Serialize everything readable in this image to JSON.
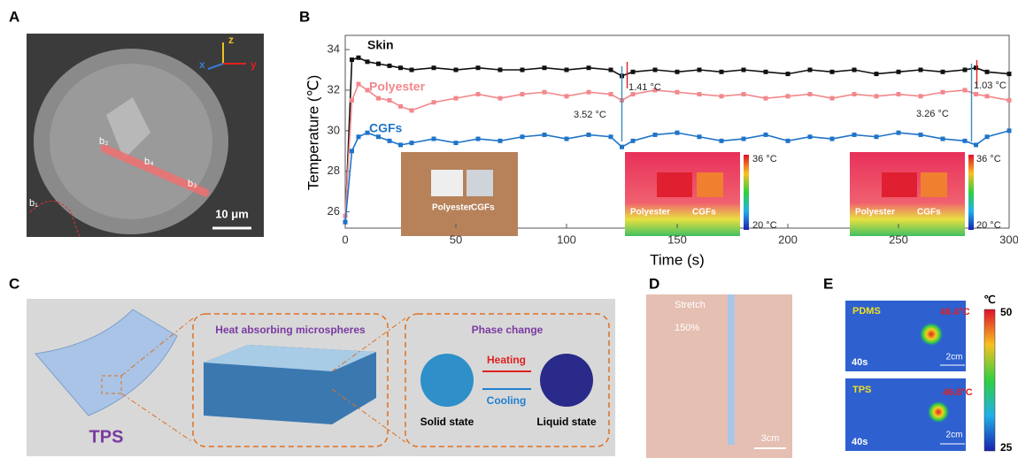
{
  "panel_labels": [
    "A",
    "B",
    "C",
    "D",
    "E"
  ],
  "panel_a": {
    "axes": [
      "z",
      "x",
      "y"
    ],
    "points": [
      "b₂",
      "b₄",
      "b₃",
      "b₁"
    ],
    "scale_bar": "10 μm"
  },
  "panel_c": {
    "sheet_label": "TPS",
    "box1_title": "Heat absorbing microspheres",
    "box2_title": "Phase change",
    "heating": "Heating",
    "cooling": "Cooling",
    "solid": "Solid state",
    "liquid": "Liquid state"
  },
  "panel_d": {
    "title": "Stretch",
    "strain": "150%",
    "scale_bar": "3cm"
  },
  "panel_e": {
    "unit": "℃",
    "scale_max": "50",
    "scale_min": "25",
    "images": [
      {
        "sample": "PDMS",
        "temp": "46.4°C",
        "time": "40s",
        "scale_bar": "2cm"
      },
      {
        "sample": "TPS",
        "temp": "46.8°C",
        "time": "40s",
        "scale_bar": "2cm"
      }
    ]
  },
  "chart_data": {
    "type": "line",
    "xlabel": "Time (s)",
    "ylabel": "Temperature (℃)",
    "x": [
      0,
      3,
      6,
      10,
      15,
      20,
      25,
      30,
      40,
      50,
      60,
      70,
      80,
      90,
      100,
      110,
      120,
      125,
      130,
      140,
      150,
      160,
      170,
      180,
      190,
      200,
      210,
      220,
      230,
      240,
      250,
      260,
      270,
      280,
      285,
      290,
      300
    ],
    "series": [
      {
        "name": "Skin",
        "color": "#111111",
        "values": [
          25.5,
          33.5,
          33.6,
          33.4,
          33.3,
          33.2,
          33.1,
          33.0,
          33.1,
          33.0,
          33.1,
          33.0,
          33.0,
          33.1,
          33.0,
          33.1,
          33.0,
          32.7,
          32.9,
          33.0,
          32.9,
          33.0,
          32.9,
          33.0,
          32.9,
          32.8,
          33.0,
          32.9,
          33.0,
          32.8,
          32.9,
          33.0,
          32.9,
          33.0,
          33.1,
          32.9,
          32.8
        ]
      },
      {
        "name": "Polyester",
        "color": "#f2888c",
        "values": [
          25.8,
          31.5,
          32.3,
          32.0,
          31.6,
          31.5,
          31.2,
          31.0,
          31.4,
          31.6,
          31.8,
          31.6,
          31.8,
          31.9,
          31.7,
          31.9,
          31.8,
          31.5,
          31.8,
          32.0,
          31.9,
          31.8,
          31.7,
          31.8,
          31.6,
          31.7,
          31.8,
          31.6,
          31.8,
          31.7,
          31.8,
          31.7,
          31.9,
          32.0,
          31.8,
          31.7,
          31.5
        ]
      },
      {
        "name": "CGFs",
        "color": "#1f74c8",
        "values": [
          25.5,
          29.0,
          29.7,
          29.9,
          29.7,
          29.5,
          29.3,
          29.4,
          29.6,
          29.4,
          29.6,
          29.5,
          29.7,
          29.8,
          29.6,
          29.8,
          29.7,
          29.2,
          29.5,
          29.8,
          29.9,
          29.7,
          29.5,
          29.6,
          29.8,
          29.5,
          29.7,
          29.6,
          29.8,
          29.7,
          29.9,
          29.8,
          29.6,
          29.5,
          29.3,
          29.7,
          30.0
        ]
      }
    ],
    "xlim": [
      0,
      300
    ],
    "xticks": [
      0,
      50,
      100,
      150,
      200,
      250,
      300
    ],
    "ylim": [
      25.2,
      34.7
    ],
    "yticks": [
      26,
      28,
      30,
      32,
      34
    ],
    "annotations": [
      "1.41 °C",
      "3.52 °C",
      "1.03 °C",
      "3.26 °C"
    ],
    "inset_labels": [
      "Polyester",
      "CGFs",
      "Polyester",
      "CGFs",
      "Polyester",
      "CGFs"
    ],
    "inset_scale_labels": [
      "36 °C",
      "20 °C",
      "36 °C",
      "20 °C"
    ]
  }
}
